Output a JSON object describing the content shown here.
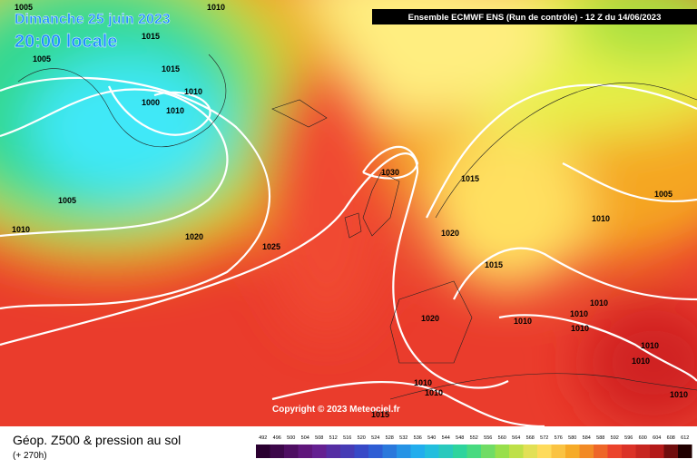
{
  "header": {
    "date": "Dimanche 25 juin 2023",
    "time": "20:00 locale",
    "run": "Ensemble ECMWF ENS  (Run de contrôle)  -  12 Z du 14/06/2023"
  },
  "copyright": "Copyright © 2023 Meteociel.fr",
  "footer": {
    "title": "Géop. Z500 & pression au sol",
    "lead": "(+ 270h)"
  },
  "pressure_labels": [
    1005,
    1010,
    1015,
    1005,
    1015,
    1010,
    1000,
    1010,
    1005,
    1010,
    1020,
    1025,
    1030,
    1015,
    1020,
    1015,
    1010,
    1005,
    1010,
    1010,
    1010,
    1010,
    1020,
    1010,
    1010,
    1010,
    1010,
    1015,
    1010
  ],
  "scale": [
    492,
    496,
    500,
    504,
    508,
    512,
    516,
    520,
    524,
    528,
    532,
    536,
    540,
    544,
    548,
    552,
    556,
    560,
    564,
    568,
    572,
    576,
    580,
    584,
    588,
    592,
    596,
    600,
    604,
    608,
    612
  ]
}
